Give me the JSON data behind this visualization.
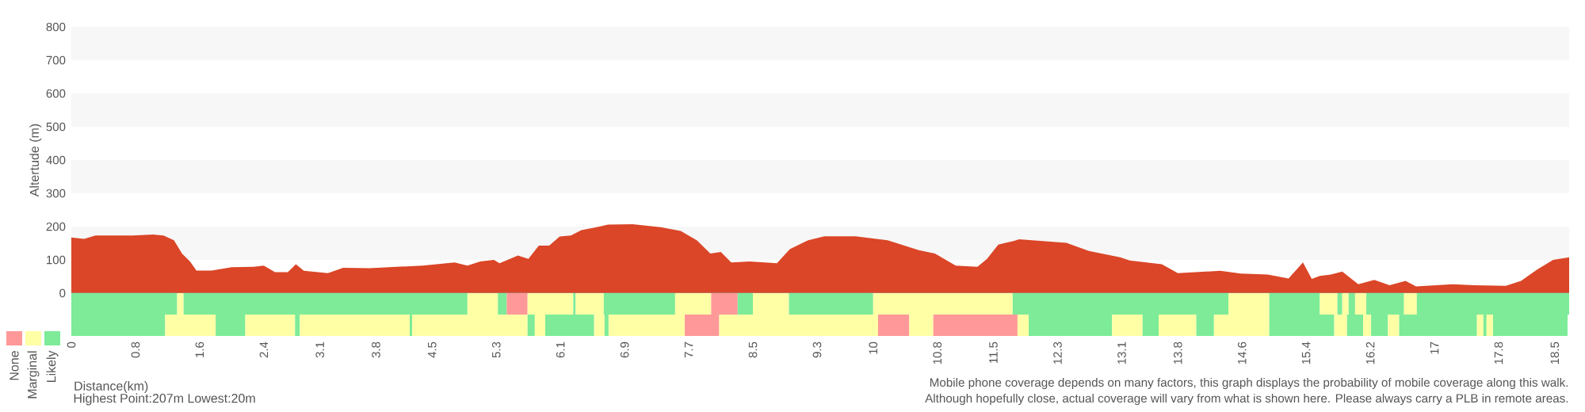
{
  "chart_data": [
    {
      "type": "area",
      "ylabel": "Altertude (m)",
      "color": "#da4627",
      "xlim": [
        0,
        18.68
      ],
      "ylim": [
        0,
        800
      ],
      "yticks": [
        0,
        100,
        200,
        300,
        400,
        500,
        600,
        700,
        800
      ],
      "tick_labels": "y",
      "bands": [
        {
          "axis": "y",
          "from": 100,
          "to": 200,
          "color": "#f7f7f7"
        },
        {
          "axis": "y",
          "from": 300,
          "to": 400,
          "color": "#f7f7f7"
        },
        {
          "axis": "y",
          "from": 500,
          "to": 600,
          "color": "#f7f7f7"
        },
        {
          "axis": "y",
          "from": 700,
          "to": 800,
          "color": "#f7f7f7"
        }
      ],
      "x": [
        0,
        0.16,
        0.3,
        0.76,
        1.02,
        1.15,
        1.28,
        1.38,
        1.48,
        1.56,
        1.75,
        2.0,
        2.27,
        2.4,
        2.54,
        2.7,
        2.8,
        2.9,
        3.2,
        3.39,
        3.72,
        4.05,
        4.38,
        4.78,
        4.94,
        5.1,
        5.27,
        5.34,
        5.57,
        5.7,
        5.83,
        5.96,
        6.09,
        6.23,
        6.36,
        6.55,
        6.69,
        7.0,
        7.35,
        7.6,
        7.8,
        7.97,
        8.1,
        8.23,
        8.46,
        8.8,
        8.96,
        9.19,
        9.39,
        9.78,
        10.18,
        10.57,
        10.77,
        11.03,
        11.3,
        11.42,
        11.56,
        11.76,
        11.82,
        12.41,
        12.69,
        13.08,
        13.2,
        13.6,
        13.8,
        14.33,
        14.58,
        14.92,
        15.18,
        15.36,
        15.47,
        15.57,
        15.71,
        15.85,
        16.05,
        16.25,
        16.44,
        16.64,
        16.77,
        17.23,
        17.49,
        17.89,
        18.08,
        18.28,
        18.48,
        18.68
      ],
      "values": [
        167,
        163,
        173,
        173,
        176,
        173,
        159,
        119,
        95,
        68,
        68,
        78,
        79,
        83,
        63,
        63,
        87,
        67,
        60,
        76,
        75,
        79,
        83,
        92,
        83,
        95,
        100,
        90,
        113,
        103,
        143,
        143,
        170,
        173,
        189,
        198,
        206,
        207,
        198,
        187,
        159,
        119,
        124,
        92,
        95,
        90,
        132,
        159,
        171,
        171,
        159,
        129,
        119,
        83,
        79,
        103,
        146,
        157,
        162,
        151,
        127,
        108,
        98,
        87,
        60,
        67,
        59,
        56,
        44,
        92,
        43,
        52,
        56,
        65,
        27,
        40,
        24,
        37,
        20,
        27,
        24,
        22,
        37,
        71,
        100,
        108
      ]
    },
    {
      "type": "bar",
      "orientation": "horizontal",
      "stacked": true,
      "categories": [
        null,
        null
      ],
      "xlabel": "Distance(km)",
      "xlim": [
        0,
        18.68
      ],
      "xticks": [
        0,
        0.8,
        1.6,
        2.4,
        3.1,
        3.8,
        4.5,
        5.3,
        6.1,
        6.9,
        7.7,
        8.5,
        9.3,
        10,
        10.8,
        11.5,
        12.3,
        13.1,
        13.8,
        14.6,
        15.4,
        16.2,
        17,
        17.8,
        18.5
      ],
      "tick_labels": "x",
      "legend": "left",
      "annotations": [
        "Highest Point:207m Lowest:20m",
        "Mobile phone coverage depends on many factors, this graph displays the probability of mobile coverage along this walk.",
        "Although hopefully close, actual coverage will vary from what is shown here. Please always carry a PLB in remote areas."
      ],
      "series": [
        {
          "color": "#7deb98",
          "values": [
            1.32,
            null
          ]
        },
        {
          "color": "#ffffa6",
          "values": [
            0.08,
            null
          ]
        },
        {
          "color": "#7deb98",
          "values": [
            3.54,
            null
          ]
        },
        {
          "color": "#ffffa6",
          "values": [
            0.38,
            null
          ]
        },
        {
          "color": "#7deb98",
          "values": [
            0.11,
            null
          ]
        },
        {
          "name": "None",
          "color": "#ff9999",
          "values": [
            0.26,
            null
          ]
        },
        {
          "name": "Marginal",
          "color": "#ffffa6",
          "values": [
            0.57,
            null
          ]
        },
        {
          "name": "Likely",
          "color": "#7deb98",
          "values": [
            0.03,
            null
          ]
        },
        {
          "color": "#ffffa6",
          "values": [
            0.35,
            null
          ]
        },
        {
          "color": "#7deb98",
          "values": [
            0.89,
            null
          ]
        },
        {
          "color": "#ffffa6",
          "values": [
            0.45,
            null
          ]
        },
        {
          "color": "#ff9999",
          "values": [
            0.33,
            null
          ]
        },
        {
          "color": "#7deb98",
          "values": [
            0.19,
            null
          ]
        },
        {
          "color": "#ffffa6",
          "values": [
            0.45,
            null
          ]
        },
        {
          "color": "#7deb98",
          "values": [
            1.05,
            null
          ]
        },
        {
          "color": "#ffffa6",
          "values": [
            1.74,
            null
          ]
        },
        {
          "color": "#7deb98",
          "values": [
            2.69,
            null
          ]
        },
        {
          "color": "#ffffa6",
          "values": [
            0.51,
            null
          ]
        },
        {
          "color": "#7deb98",
          "values": [
            0.63,
            null
          ]
        },
        {
          "color": "#ffffa6",
          "values": [
            0.22,
            null
          ]
        },
        {
          "color": "#7deb98",
          "values": [
            0.06,
            null
          ]
        },
        {
          "color": "#ffffa6",
          "values": [
            0.08,
            null
          ]
        },
        {
          "color": "#7deb98",
          "values": [
            0.08,
            null
          ]
        },
        {
          "color": "#ffffa6",
          "values": [
            0.14,
            null
          ]
        },
        {
          "color": "#7deb98",
          "values": [
            0.47,
            null
          ]
        },
        {
          "color": "#ffffa6",
          "values": [
            0.16,
            null
          ]
        },
        {
          "color": "#7deb98",
          "values": [
            1.9,
            null
          ]
        },
        {
          "color": "#7deb98",
          "values": [
            null,
            1.17
          ]
        },
        {
          "color": "#ffffa6",
          "values": [
            null,
            0.63
          ]
        },
        {
          "color": "#7deb98",
          "values": [
            null,
            0.37
          ]
        },
        {
          "color": "#ffffa6",
          "values": [
            null,
            0.62
          ]
        },
        {
          "color": "#7deb98",
          "values": [
            null,
            0.06
          ]
        },
        {
          "color": "#ffffa6",
          "values": [
            null,
            1.37
          ]
        },
        {
          "color": "#7deb98",
          "values": [
            null,
            0.03
          ]
        },
        {
          "color": "#ffffa6",
          "values": [
            null,
            1.44
          ]
        },
        {
          "color": "#7deb98",
          "values": [
            null,
            0.09
          ]
        },
        {
          "color": "#ffffa6",
          "values": [
            null,
            0.13
          ]
        },
        {
          "color": "#7deb98",
          "values": [
            null,
            0.61
          ]
        },
        {
          "color": "#ffffa6",
          "values": [
            null,
            0.13
          ]
        },
        {
          "color": "#7deb98",
          "values": [
            null,
            0.05
          ]
        },
        {
          "color": "#ffffa6",
          "values": [
            null,
            0.95
          ]
        },
        {
          "color": "#ff9999",
          "values": [
            null,
            0.43
          ]
        },
        {
          "color": "#ffffa6",
          "values": [
            null,
            1.98
          ]
        },
        {
          "color": "#ff9999",
          "values": [
            null,
            0.39
          ]
        },
        {
          "color": "#ffffa6",
          "values": [
            null,
            0.3
          ]
        },
        {
          "color": "#ff9999",
          "values": [
            null,
            1.05
          ]
        },
        {
          "color": "#ffffa6",
          "values": [
            null,
            0.14
          ]
        },
        {
          "color": "#7deb98",
          "values": [
            null,
            1.04
          ]
        },
        {
          "color": "#ffffa6",
          "values": [
            null,
            0.38
          ]
        },
        {
          "color": "#7deb98",
          "values": [
            null,
            0.2
          ]
        },
        {
          "color": "#ffffa6",
          "values": [
            null,
            0.47
          ]
        },
        {
          "color": "#7deb98",
          "values": [
            null,
            0.22
          ]
        },
        {
          "color": "#ffffa6",
          "values": [
            null,
            0.69
          ]
        },
        {
          "color": "#7deb98",
          "values": [
            null,
            0.81
          ]
        },
        {
          "color": "#ffffa6",
          "values": [
            null,
            0.16
          ]
        },
        {
          "color": "#7deb98",
          "values": [
            null,
            0.2
          ]
        },
        {
          "color": "#ffffa6",
          "values": [
            null,
            0.1
          ]
        },
        {
          "color": "#7deb98",
          "values": [
            null,
            0.21
          ]
        },
        {
          "color": "#ffffa6",
          "values": [
            null,
            0.14
          ]
        },
        {
          "color": "#7deb98",
          "values": [
            null,
            0.97
          ]
        },
        {
          "color": "#ffffa6",
          "values": [
            null,
            0.08
          ]
        },
        {
          "color": "#7deb98",
          "values": [
            null,
            0.04
          ]
        },
        {
          "color": "#ffffa6",
          "values": [
            null,
            0.08
          ]
        },
        {
          "color": "#7deb98",
          "values": [
            null,
            0.93
          ]
        }
      ]
    }
  ]
}
